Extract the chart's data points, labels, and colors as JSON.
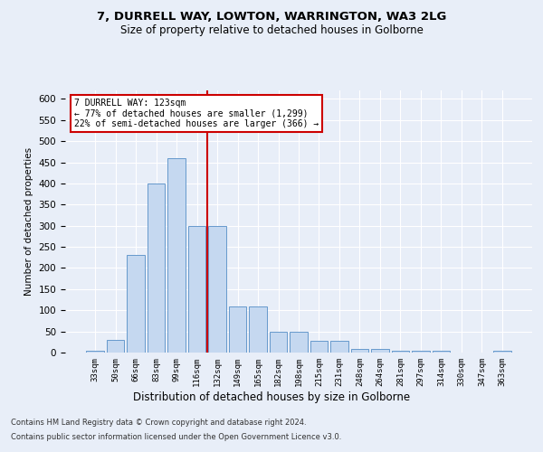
{
  "title_line1": "7, DURRELL WAY, LOWTON, WARRINGTON, WA3 2LG",
  "title_line2": "Size of property relative to detached houses in Golborne",
  "xlabel": "Distribution of detached houses by size in Golborne",
  "ylabel": "Number of detached properties",
  "bar_labels": [
    "33sqm",
    "50sqm",
    "66sqm",
    "83sqm",
    "99sqm",
    "116sqm",
    "132sqm",
    "149sqm",
    "165sqm",
    "182sqm",
    "198sqm",
    "215sqm",
    "231sqm",
    "248sqm",
    "264sqm",
    "281sqm",
    "297sqm",
    "314sqm",
    "330sqm",
    "347sqm",
    "363sqm"
  ],
  "bar_heights": [
    5,
    30,
    230,
    400,
    460,
    300,
    300,
    110,
    110,
    50,
    50,
    28,
    28,
    8,
    8,
    4,
    4,
    4,
    1,
    1,
    4
  ],
  "bar_color": "#c5d8f0",
  "bar_edge_color": "#6699cc",
  "vline_x": 5.5,
  "vline_color": "#cc0000",
  "annotation_text": "7 DURRELL WAY: 123sqm\n← 77% of detached houses are smaller (1,299)\n22% of semi-detached houses are larger (366) →",
  "annotation_box_color": "#ffffff",
  "annotation_box_edge_color": "#cc0000",
  "ylim": [
    0,
    620
  ],
  "yticks": [
    0,
    50,
    100,
    150,
    200,
    250,
    300,
    350,
    400,
    450,
    500,
    550,
    600
  ],
  "footer_line1": "Contains HM Land Registry data © Crown copyright and database right 2024.",
  "footer_line2": "Contains public sector information licensed under the Open Government Licence v3.0.",
  "background_color": "#e8eef8",
  "plot_background_color": "#e8eef8",
  "grid_color": "#ffffff"
}
